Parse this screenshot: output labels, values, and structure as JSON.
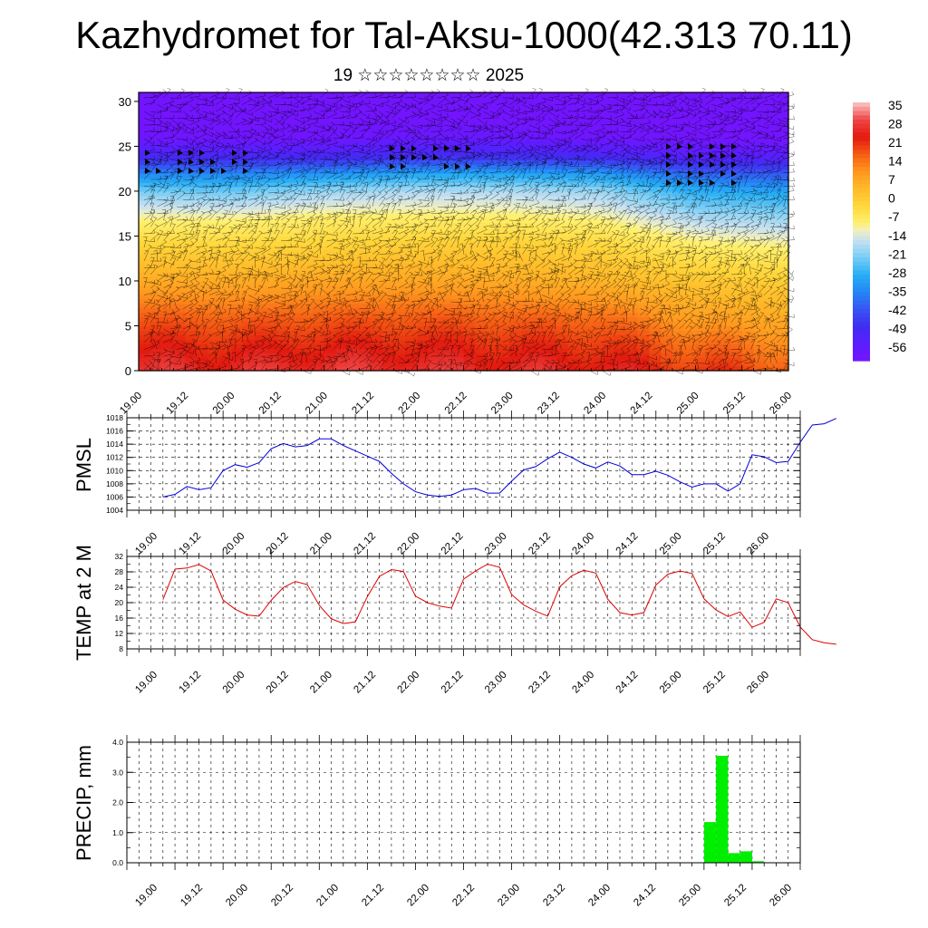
{
  "title": "Kazhydromet for Tal-Aksu-1000(42.313 70.11)",
  "subtitle": "19 ☆☆☆☆☆☆☆☆ 2025",
  "time_labels": [
    "19.00",
    "19.12",
    "20.00",
    "20.12",
    "21.00",
    "21.12",
    "22.00",
    "22.12",
    "23.00",
    "23.12",
    "24.00",
    "24.12",
    "25.00",
    "25.12",
    "26.00"
  ],
  "colors": {
    "pmsl_line": "#0000dd",
    "temp_line": "#dd0000",
    "precip_bar": "#00ee00"
  },
  "chart_data": [
    {
      "type": "heatmap",
      "name": "upper-air-temperature-cross-section",
      "x": "time_labels",
      "y_ticks": [
        "0",
        "5",
        "10",
        "15",
        "20",
        "25",
        "30"
      ],
      "ylim": [
        0,
        31
      ],
      "colorbar": {
        "labels": [
          "35",
          "28",
          "21",
          "14",
          "7",
          "0",
          "-7",
          "-14",
          "-21",
          "-28",
          "-35",
          "-42",
          "-49",
          "-56"
        ],
        "range": [
          -63,
          42
        ]
      },
      "profile_levels": [
        0,
        3,
        6,
        10,
        14,
        17,
        20,
        22,
        24,
        26,
        28,
        31
      ],
      "profiles_by_day": [
        [
          32,
          27,
          21,
          10,
          1,
          -8,
          -21,
          -35,
          -52,
          -62,
          -63,
          -63
        ],
        [
          31,
          26,
          20,
          10,
          0,
          -8,
          -22,
          -35,
          -52,
          -62,
          -63,
          -63
        ],
        [
          33,
          27,
          21,
          11,
          1,
          -6,
          -18,
          -33,
          -52,
          -62,
          -63,
          -63
        ],
        [
          32,
          27,
          21,
          11,
          2,
          -6,
          -16,
          -30,
          -50,
          -60,
          -63,
          -63
        ],
        [
          31,
          26,
          20,
          10,
          2,
          -6,
          -16,
          -30,
          -50,
          -60,
          -63,
          -63
        ],
        [
          30,
          25,
          19,
          8,
          0,
          -8,
          -18,
          -32,
          -52,
          -62,
          -63,
          -63
        ],
        [
          25,
          19,
          12,
          4,
          -6,
          -16,
          -28,
          -40,
          -56,
          -63,
          -63,
          -63
        ],
        [
          22,
          16,
          10,
          2,
          -8,
          -18,
          -30,
          -42,
          -56,
          -63,
          -63,
          -63
        ]
      ],
      "wind_flags_note": "black wind barbs overlaid"
    },
    {
      "type": "line",
      "name": "PMSL",
      "ylabel": "PMSL",
      "ylim": [
        1004,
        1018
      ],
      "y_ticks": [
        "1004",
        "1006",
        "1008",
        "1010",
        "1012",
        "1014",
        "1016",
        "1018"
      ],
      "interval_hours": 3,
      "values": [
        1006.0,
        1006.4,
        1007.6,
        1007.1,
        1007.4,
        1010.0,
        1010.9,
        1010.5,
        1011.2,
        1013.3,
        1014.1,
        1013.6,
        1013.8,
        1014.8,
        1014.8,
        1013.8,
        1013.0,
        1012.2,
        1011.4,
        1009.6,
        1008.0,
        1006.8,
        1006.3,
        1006.1,
        1006.3,
        1007.1,
        1007.3,
        1006.6,
        1006.6,
        1008.4,
        1010.1,
        1010.6,
        1011.8,
        1012.8,
        1012.0,
        1011.0,
        1010.4,
        1011.3,
        1010.7,
        1009.4,
        1009.4,
        1009.9,
        1009.3,
        1008.3,
        1007.5,
        1008.0,
        1008.0,
        1006.9,
        1008.0,
        1012.4,
        1012.1,
        1011.2,
        1011.4,
        1014.3,
        1016.9,
        1017.1,
        1017.9
      ]
    },
    {
      "type": "line",
      "name": "TEMP at 2 M",
      "ylabel": "TEMP at 2 M",
      "ylim": [
        8,
        32
      ],
      "y_ticks": [
        "8",
        "12",
        "16",
        "20",
        "24",
        "28",
        "32"
      ],
      "interval_hours": 3,
      "values": [
        20.8,
        28.7,
        29.0,
        29.9,
        28.2,
        20.7,
        18.3,
        16.8,
        16.5,
        20.6,
        23.9,
        25.5,
        24.7,
        19.3,
        15.8,
        14.6,
        15.0,
        21.6,
        26.8,
        28.6,
        28.1,
        21.7,
        20.0,
        19.1,
        18.6,
        26.1,
        28.2,
        30.0,
        29.2,
        22.1,
        19.4,
        17.8,
        16.5,
        24.1,
        27.0,
        28.4,
        27.7,
        20.9,
        17.4,
        16.8,
        17.4,
        24.6,
        27.4,
        28.2,
        27.6,
        21.0,
        18.1,
        16.4,
        17.6,
        13.6,
        14.9,
        21.0,
        20.0,
        13.7,
        10.4,
        9.6,
        9.2
      ]
    },
    {
      "type": "bar",
      "name": "PRECIP, mm",
      "ylabel": "PRECIP, mm",
      "ylim": [
        0,
        4
      ],
      "y_ticks": [
        "0.0",
        "1.0",
        "2.0",
        "3.0",
        "4.0"
      ],
      "interval_hours": 3,
      "bars": [
        {
          "start_hour": 144,
          "value": 1.35
        },
        {
          "start_hour": 147,
          "value": 3.55
        },
        {
          "start_hour": 150,
          "value": 0.32
        },
        {
          "start_hour": 153,
          "value": 0.38
        },
        {
          "start_hour": 156,
          "value": 0.05
        }
      ]
    }
  ]
}
